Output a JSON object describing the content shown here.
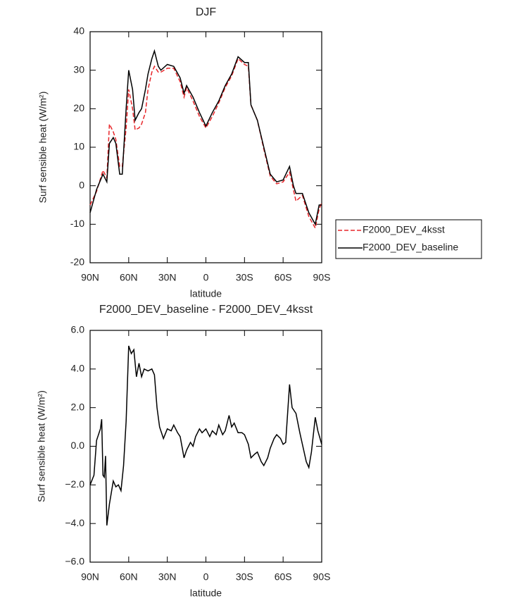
{
  "chart_data": [
    {
      "type": "line",
      "title": "DJF",
      "xlabel": "latitude",
      "ylabel": "Surf sensible heat (W/m²)",
      "x": [
        90,
        85,
        80,
        77,
        75,
        72,
        70,
        67,
        65,
        62,
        60,
        57,
        55,
        52,
        50,
        47,
        45,
        42,
        40,
        37,
        35,
        30,
        25,
        20,
        17,
        15,
        10,
        5,
        0,
        -5,
        -10,
        -15,
        -20,
        -25,
        -30,
        -33,
        -35,
        -40,
        -45,
        -50,
        -55,
        -60,
        -65,
        -68,
        -70,
        -75,
        -80,
        -85,
        -88,
        -90
      ],
      "series": [
        {
          "name": "F2000_DEV_4ksst",
          "color": "#e8262a",
          "line_style": "dashed",
          "values": [
            -5,
            -1.5,
            4,
            2,
            16,
            14,
            12,
            5,
            5,
            15,
            25,
            20,
            14.5,
            15,
            16,
            19,
            25,
            29.5,
            31,
            29.5,
            29.5,
            30.5,
            30.5,
            27,
            23,
            25.5,
            22,
            18,
            15,
            18,
            21.5,
            25.5,
            28.5,
            33,
            31.5,
            31,
            21,
            17,
            9.5,
            2.5,
            0.5,
            1,
            3.5,
            -1,
            -4,
            -2.5,
            -8,
            -11,
            -6,
            -4.5
          ]
        },
        {
          "name": "F2000_DEV_baseline",
          "color": "#000000",
          "line_style": "solid",
          "values": [
            -7,
            -1,
            3,
            1,
            11,
            12.5,
            11,
            3,
            3,
            20,
            30,
            25,
            17,
            19,
            20,
            25,
            29,
            33,
            35,
            31,
            30,
            31.5,
            31,
            28,
            24,
            26,
            23,
            19,
            15.5,
            19,
            22,
            26,
            29,
            33.5,
            32,
            32,
            21,
            17,
            10,
            3,
            1,
            1.5,
            5,
            0,
            -2,
            -2,
            -7,
            -10,
            -5,
            -5
          ]
        }
      ],
      "xlim": [
        90,
        -90
      ],
      "xticks": [
        {
          "value": 90,
          "label": "90N"
        },
        {
          "value": 60,
          "label": "60N"
        },
        {
          "value": 30,
          "label": "30N"
        },
        0,
        {
          "value": -30,
          "label": "30S"
        },
        {
          "value": -60,
          "label": "60S"
        },
        {
          "value": -90,
          "label": "90S"
        }
      ],
      "ylim": [
        -20,
        40
      ],
      "yticks": [
        -20,
        -10,
        0,
        10,
        20,
        30,
        40
      ],
      "legend_position": "outside-right"
    },
    {
      "type": "line",
      "title": "F2000_DEV_baseline - F2000_DEV_4ksst",
      "xlabel": "latitude",
      "ylabel": "Surf sensible heat (W/m²)",
      "x": [
        90,
        87,
        85,
        82,
        81,
        80,
        79,
        78,
        77,
        75,
        72,
        70,
        68,
        66,
        64,
        62,
        60,
        58,
        56,
        54,
        52,
        50,
        48,
        45,
        42,
        40,
        38,
        36,
        33,
        30,
        27,
        25,
        22,
        20,
        17,
        15,
        12,
        10,
        8,
        5,
        3,
        0,
        -3,
        -5,
        -8,
        -10,
        -13,
        -15,
        -18,
        -20,
        -22,
        -25,
        -28,
        -30,
        -33,
        -35,
        -38,
        -40,
        -43,
        -45,
        -48,
        -50,
        -53,
        -55,
        -58,
        -60,
        -62,
        -65,
        -67,
        -70,
        -73,
        -75,
        -78,
        -80,
        -82,
        -85,
        -87,
        -90
      ],
      "values": [
        -2,
        -1.5,
        0.3,
        0.9,
        1.4,
        -1.5,
        -1.6,
        -0.5,
        -4.1,
        -3,
        -1.8,
        -2.1,
        -2,
        -2.3,
        -1,
        1.3,
        5.2,
        4.8,
        5,
        3.6,
        4.3,
        3.6,
        4,
        3.9,
        4,
        3.7,
        2,
        1,
        0.4,
        0.9,
        0.8,
        1.1,
        0.7,
        0.5,
        -0.6,
        -0.2,
        0.2,
        0,
        0.5,
        0.9,
        0.7,
        0.9,
        0.5,
        0.8,
        0.6,
        1.1,
        0.6,
        0.8,
        1.6,
        1,
        1.2,
        0.7,
        0.7,
        0.6,
        0.1,
        -0.6,
        -0.4,
        -0.3,
        -0.8,
        -1,
        -0.6,
        -0.1,
        0.4,
        0.6,
        0.4,
        0.1,
        0.2,
        3.2,
        2,
        1.7,
        0.7,
        0.1,
        -0.8,
        -1.1,
        -0.3,
        1.5,
        0.8,
        0.1
      ],
      "color": "#000000",
      "xlim": [
        90,
        -90
      ],
      "xticks": [
        {
          "value": 90,
          "label": "90N"
        },
        {
          "value": 60,
          "label": "60N"
        },
        {
          "value": 30,
          "label": "30N"
        },
        0,
        {
          "value": -30,
          "label": "30S"
        },
        {
          "value": -60,
          "label": "60S"
        },
        {
          "value": -90,
          "label": "90S"
        }
      ],
      "ylim": [
        -6,
        6
      ],
      "yticks": [
        {
          "value": -6,
          "label": "−6.0"
        },
        {
          "value": -4,
          "label": "−4.0"
        },
        {
          "value": -2,
          "label": "−2.0"
        },
        {
          "value": 0,
          "label": "0.0"
        },
        {
          "value": 2,
          "label": "2.0"
        },
        {
          "value": 4,
          "label": "4.0"
        },
        {
          "value": 6,
          "label": "6.0"
        }
      ]
    }
  ]
}
